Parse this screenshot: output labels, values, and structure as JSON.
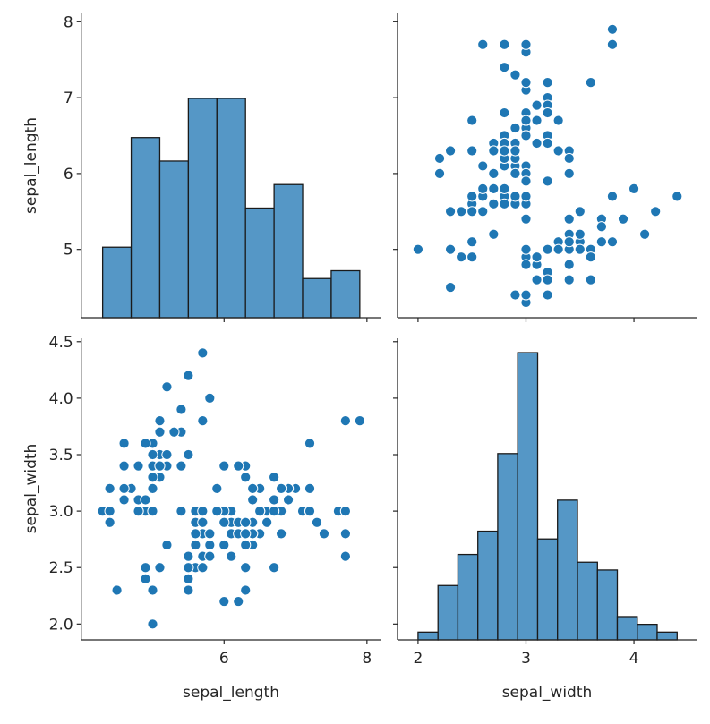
{
  "chart_data": {
    "type": "scatter",
    "layout": "pairplot",
    "variables": [
      "sepal_length",
      "sepal_width"
    ],
    "axis_labels": {
      "sepal_length": "sepal_length",
      "sepal_width": "sepal_width"
    },
    "axes": {
      "sepal_length": {
        "lim": [
          4.0,
          8.19
        ],
        "ylim": [
          4.1,
          8.11
        ],
        "ticks": [
          5,
          6,
          7,
          8
        ],
        "tick_labels": [
          "5",
          "6",
          "7",
          "8"
        ],
        "x_ticks": [
          6,
          8
        ],
        "x_tick_labels": [
          "6",
          "8"
        ]
      },
      "sepal_width": {
        "lim": [
          1.81,
          4.58
        ],
        "ylim": [
          1.86,
          4.53
        ],
        "ticks": [
          2.0,
          2.5,
          3.0,
          3.5,
          4.0,
          4.5
        ],
        "tick_labels": [
          "2.0",
          "2.5",
          "3.0",
          "3.5",
          "4.0",
          "4.5"
        ],
        "x_ticks": [
          2,
          3,
          4
        ],
        "x_tick_labels": [
          "2",
          "3",
          "4"
        ]
      }
    },
    "histograms": [
      {
        "type": "bar",
        "variable": "sepal_length",
        "bin_edges": [
          4.3,
          4.7,
          5.1,
          5.5,
          5.9,
          6.3,
          6.7,
          7.1,
          7.5,
          7.9
        ],
        "counts": [
          9,
          23,
          20,
          28,
          28,
          14,
          17,
          5,
          6
        ]
      },
      {
        "type": "bar",
        "variable": "sepal_width",
        "bin_edges": [
          2.0,
          2.185,
          2.369,
          2.554,
          2.738,
          2.923,
          3.108,
          3.292,
          3.477,
          3.662,
          3.846,
          4.031,
          4.215,
          4.4
        ],
        "counts": [
          1,
          7,
          11,
          14,
          24,
          37,
          13,
          18,
          10,
          9,
          3,
          2,
          1
        ]
      }
    ],
    "points_columns": [
      "sepal_length",
      "sepal_width"
    ],
    "points": [
      [
        5.1,
        3.5
      ],
      [
        4.9,
        3.0
      ],
      [
        4.7,
        3.2
      ],
      [
        4.6,
        3.1
      ],
      [
        5.0,
        3.6
      ],
      [
        5.4,
        3.9
      ],
      [
        4.6,
        3.4
      ],
      [
        5.0,
        3.4
      ],
      [
        4.4,
        2.9
      ],
      [
        4.9,
        3.1
      ],
      [
        5.4,
        3.7
      ],
      [
        4.8,
        3.4
      ],
      [
        4.8,
        3.0
      ],
      [
        4.3,
        3.0
      ],
      [
        5.8,
        4.0
      ],
      [
        5.7,
        4.4
      ],
      [
        5.4,
        3.9
      ],
      [
        5.1,
        3.5
      ],
      [
        5.7,
        3.8
      ],
      [
        5.1,
        3.8
      ],
      [
        5.4,
        3.4
      ],
      [
        5.1,
        3.7
      ],
      [
        4.6,
        3.6
      ],
      [
        5.1,
        3.3
      ],
      [
        4.8,
        3.4
      ],
      [
        5.0,
        3.0
      ],
      [
        5.0,
        3.4
      ],
      [
        5.2,
        3.5
      ],
      [
        5.2,
        3.4
      ],
      [
        4.7,
        3.2
      ],
      [
        4.8,
        3.1
      ],
      [
        5.4,
        3.4
      ],
      [
        5.2,
        4.1
      ],
      [
        5.5,
        4.2
      ],
      [
        4.9,
        3.1
      ],
      [
        5.0,
        3.2
      ],
      [
        5.5,
        3.5
      ],
      [
        4.9,
        3.6
      ],
      [
        4.4,
        3.0
      ],
      [
        5.1,
        3.4
      ],
      [
        5.0,
        3.5
      ],
      [
        4.5,
        2.3
      ],
      [
        4.4,
        3.2
      ],
      [
        5.0,
        3.5
      ],
      [
        5.1,
        3.8
      ],
      [
        4.8,
        3.0
      ],
      [
        5.1,
        3.8
      ],
      [
        4.6,
        3.2
      ],
      [
        5.3,
        3.7
      ],
      [
        5.0,
        3.3
      ],
      [
        7.0,
        3.2
      ],
      [
        6.4,
        3.2
      ],
      [
        6.9,
        3.1
      ],
      [
        5.5,
        2.3
      ],
      [
        6.5,
        2.8
      ],
      [
        5.7,
        2.8
      ],
      [
        6.3,
        3.3
      ],
      [
        4.9,
        2.4
      ],
      [
        6.6,
        2.9
      ],
      [
        5.2,
        2.7
      ],
      [
        5.0,
        2.0
      ],
      [
        5.9,
        3.0
      ],
      [
        6.0,
        2.2
      ],
      [
        6.1,
        2.9
      ],
      [
        5.6,
        2.9
      ],
      [
        6.7,
        3.1
      ],
      [
        5.6,
        3.0
      ],
      [
        5.8,
        2.7
      ],
      [
        6.2,
        2.2
      ],
      [
        5.6,
        2.5
      ],
      [
        5.9,
        3.2
      ],
      [
        6.1,
        2.8
      ],
      [
        6.3,
        2.5
      ],
      [
        6.1,
        2.8
      ],
      [
        6.4,
        2.9
      ],
      [
        6.6,
        3.0
      ],
      [
        6.8,
        2.8
      ],
      [
        6.7,
        3.0
      ],
      [
        6.0,
        2.9
      ],
      [
        5.7,
        2.6
      ],
      [
        5.5,
        2.4
      ],
      [
        5.5,
        2.4
      ],
      [
        5.8,
        2.7
      ],
      [
        6.0,
        2.7
      ],
      [
        5.4,
        3.0
      ],
      [
        6.0,
        3.4
      ],
      [
        6.7,
        3.1
      ],
      [
        6.3,
        2.3
      ],
      [
        5.6,
        3.0
      ],
      [
        5.5,
        2.5
      ],
      [
        5.5,
        2.6
      ],
      [
        6.1,
        3.0
      ],
      [
        5.8,
        2.6
      ],
      [
        5.0,
        2.3
      ],
      [
        5.6,
        2.7
      ],
      [
        5.7,
        3.0
      ],
      [
        5.7,
        2.9
      ],
      [
        6.2,
        2.9
      ],
      [
        5.1,
        2.5
      ],
      [
        5.7,
        2.8
      ],
      [
        6.3,
        3.3
      ],
      [
        5.8,
        2.7
      ],
      [
        7.1,
        3.0
      ],
      [
        6.3,
        2.9
      ],
      [
        6.5,
        3.0
      ],
      [
        7.6,
        3.0
      ],
      [
        4.9,
        2.5
      ],
      [
        7.3,
        2.9
      ],
      [
        6.7,
        2.5
      ],
      [
        7.2,
        3.6
      ],
      [
        6.5,
        3.2
      ],
      [
        6.4,
        2.7
      ],
      [
        6.8,
        3.0
      ],
      [
        5.7,
        2.5
      ],
      [
        5.8,
        2.8
      ],
      [
        6.4,
        3.2
      ],
      [
        6.5,
        3.0
      ],
      [
        7.7,
        3.8
      ],
      [
        7.7,
        2.6
      ],
      [
        6.0,
        2.2
      ],
      [
        6.9,
        3.2
      ],
      [
        5.6,
        2.8
      ],
      [
        7.7,
        2.8
      ],
      [
        6.3,
        2.7
      ],
      [
        6.7,
        3.3
      ],
      [
        7.2,
        3.2
      ],
      [
        6.2,
        2.8
      ],
      [
        6.1,
        3.0
      ],
      [
        6.4,
        2.8
      ],
      [
        7.2,
        3.0
      ],
      [
        7.4,
        2.8
      ],
      [
        7.9,
        3.8
      ],
      [
        6.4,
        2.8
      ],
      [
        6.3,
        2.8
      ],
      [
        6.1,
        2.6
      ],
      [
        7.7,
        3.0
      ],
      [
        6.3,
        3.4
      ],
      [
        6.4,
        3.1
      ],
      [
        6.0,
        3.0
      ],
      [
        6.9,
        3.1
      ],
      [
        6.7,
        3.1
      ],
      [
        6.9,
        3.1
      ],
      [
        5.8,
        2.7
      ],
      [
        6.8,
        3.2
      ],
      [
        6.7,
        3.3
      ],
      [
        6.7,
        3.0
      ],
      [
        6.3,
        2.5
      ],
      [
        6.5,
        3.0
      ],
      [
        6.2,
        3.4
      ],
      [
        5.9,
        3.0
      ]
    ],
    "colors": {
      "points": "#1f77b4",
      "point_edge": "#ffffff",
      "bars": "#5597c6",
      "bar_edge": "#1a1a1a",
      "axes": "#262626"
    },
    "grid": false,
    "legend": "none"
  }
}
